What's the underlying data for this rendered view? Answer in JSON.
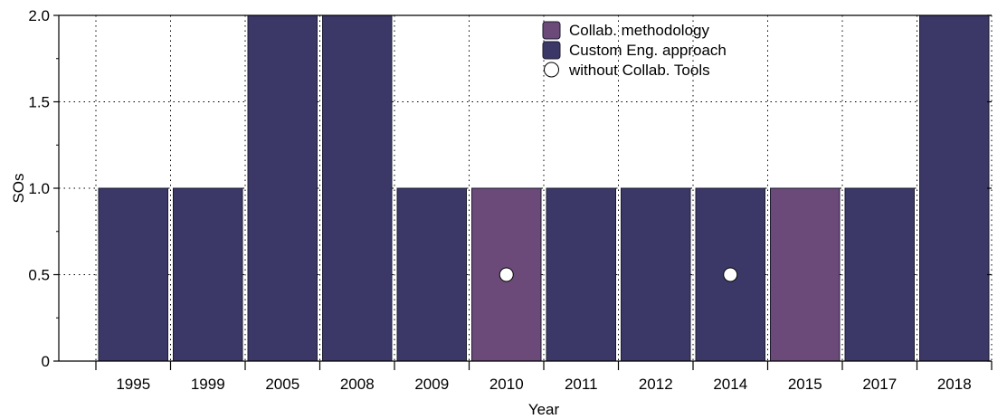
{
  "chart_data": {
    "type": "bar",
    "xlabel": "Year",
    "ylabel": "SOs",
    "ylim": [
      0,
      2.0
    ],
    "yticks": [
      "0",
      "0.5",
      "1.0",
      "1.5",
      "2.0"
    ],
    "grid": true,
    "legend_position": "top-center",
    "categories": [
      "1995",
      "1999",
      "2005",
      "2008",
      "2009",
      "2010",
      "2011",
      "2012",
      "2014",
      "2015",
      "2017",
      "2018"
    ],
    "values": [
      1,
      1,
      2,
      2,
      1,
      1,
      1,
      1,
      1,
      1,
      1,
      2
    ],
    "bar_series": [
      "custom",
      "custom",
      "custom",
      "custom",
      "custom",
      "collab",
      "custom",
      "custom",
      "custom",
      "collab",
      "custom",
      "custom"
    ],
    "series": [
      {
        "key": "collab",
        "name": "Collab. methodology",
        "color": "#6b4a79"
      },
      {
        "key": "custom",
        "name": "Custom Eng. approach",
        "color": "#3b3867"
      }
    ],
    "markers": {
      "name": "without Collab. Tools",
      "color": "#ffffff",
      "points": [
        {
          "x": "2010",
          "y": 0.5
        },
        {
          "x": "2014",
          "y": 0.5
        }
      ]
    }
  }
}
